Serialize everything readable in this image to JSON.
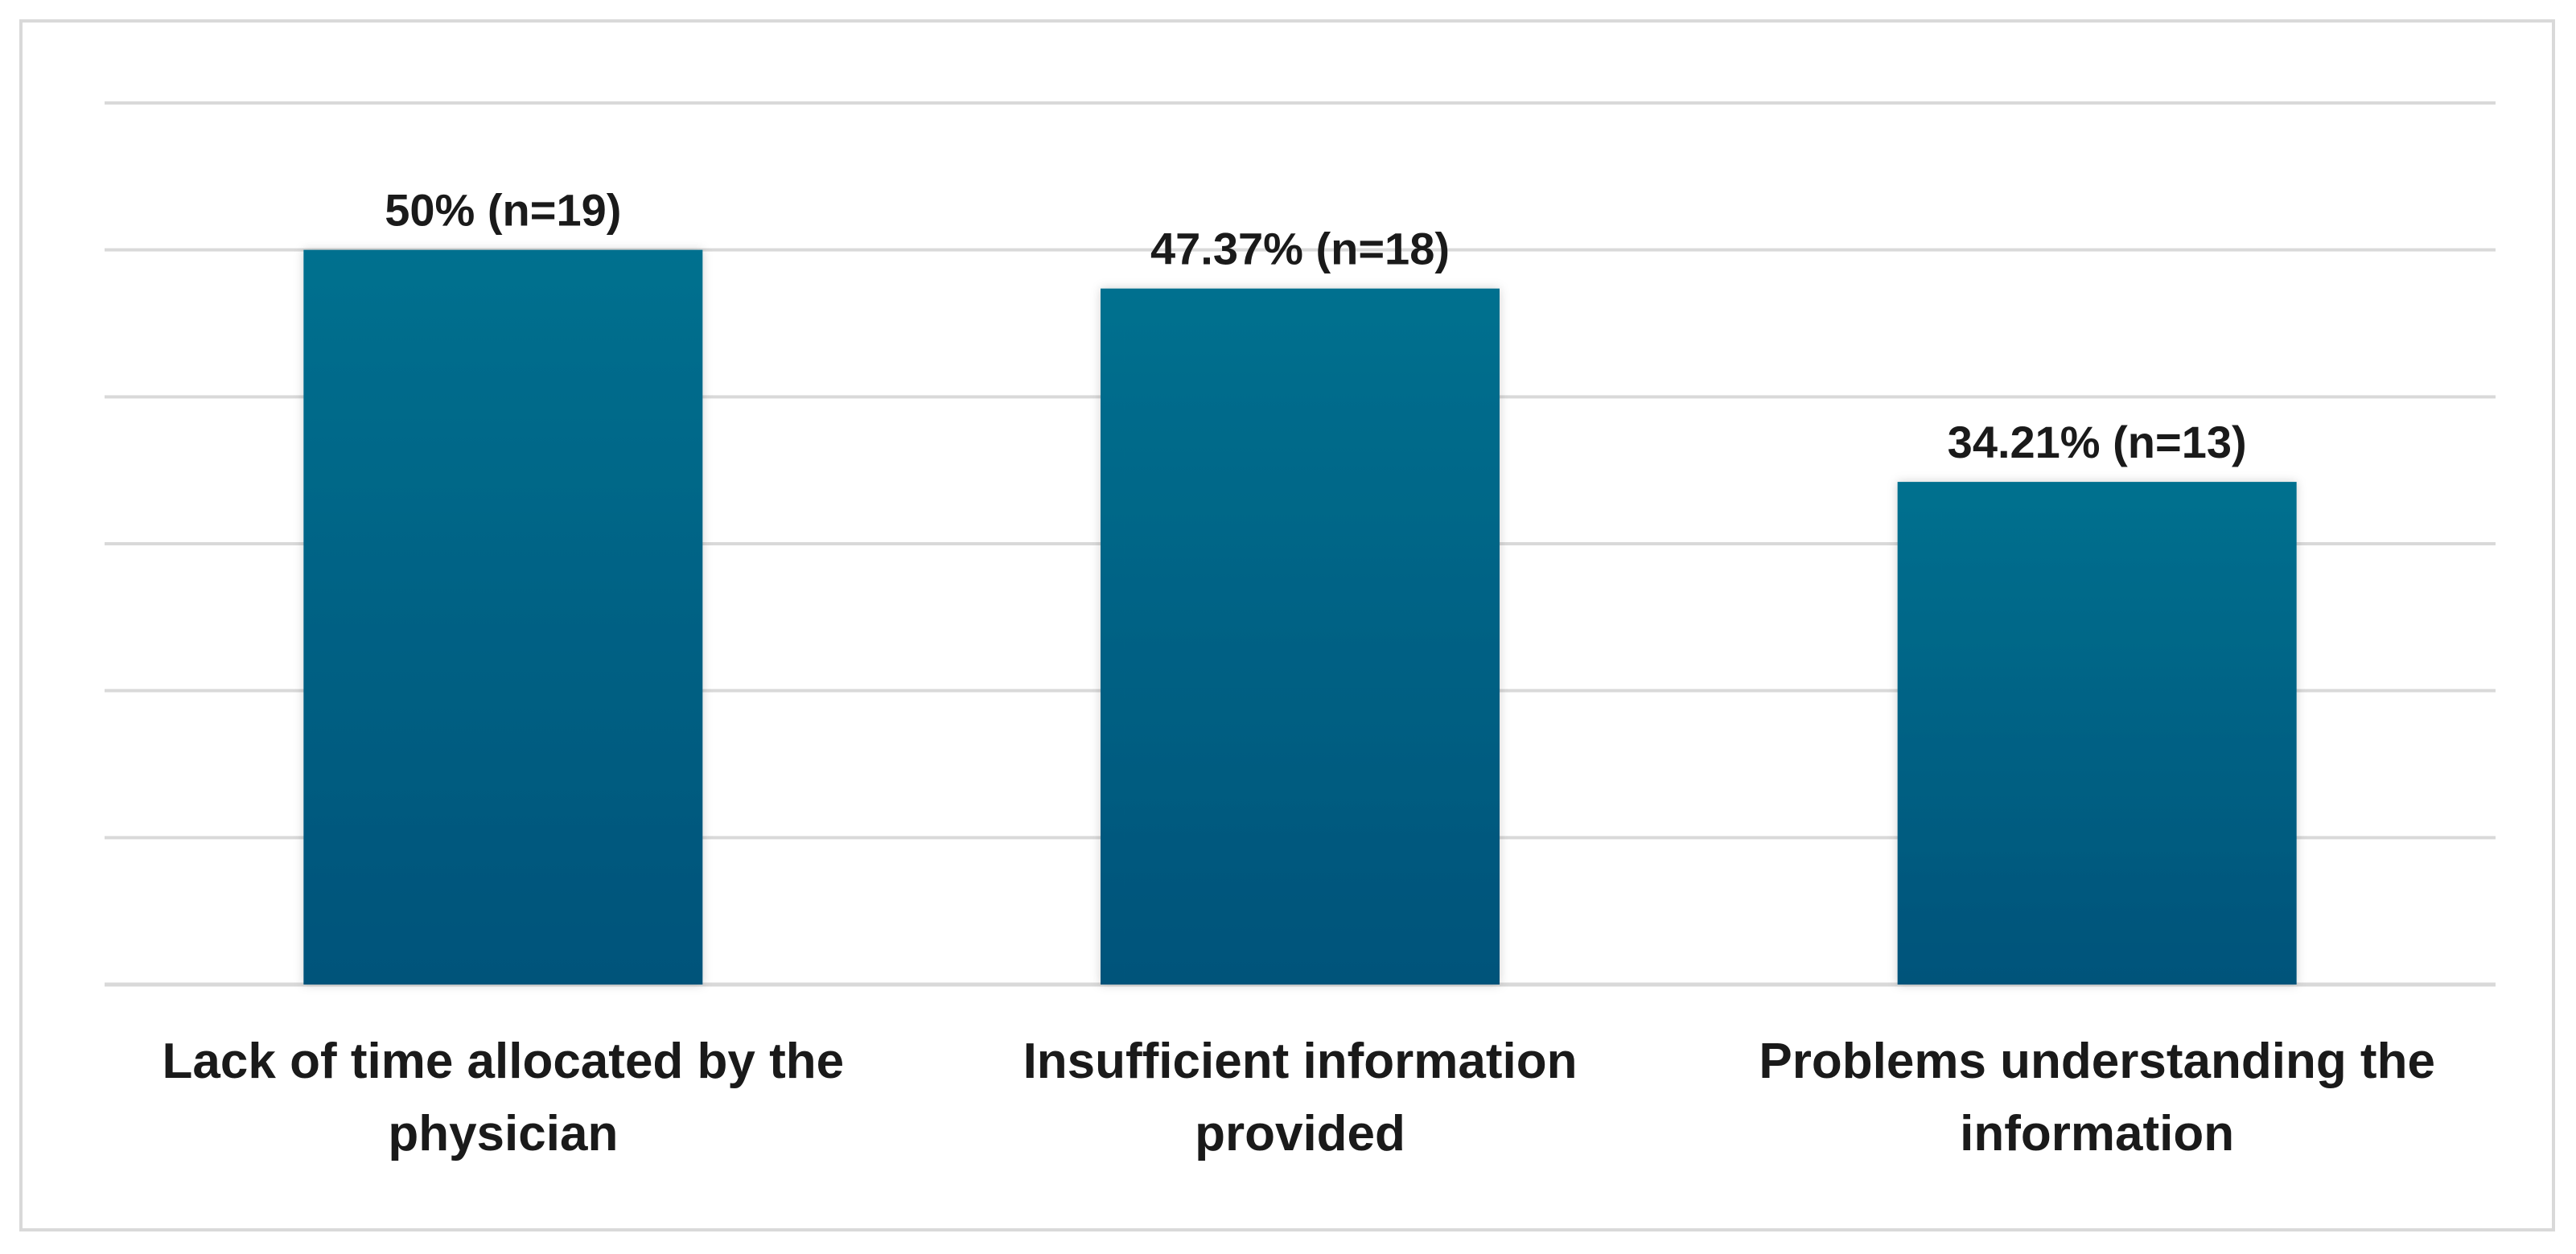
{
  "chart_data": {
    "type": "bar",
    "categories": [
      [
        "Lack of time allocated by the",
        "physician"
      ],
      [
        "Insufficient information",
        "provided"
      ],
      [
        "Problems understanding the",
        "information"
      ]
    ],
    "values": [
      50,
      47.37,
      34.21
    ],
    "counts": [
      19,
      18,
      13
    ],
    "data_labels": [
      "50% (n=19)",
      "47.37% (n=18)",
      "34.21% (n=13)"
    ],
    "title": "",
    "xlabel": "",
    "ylabel": "",
    "ylim": [
      0,
      60
    ],
    "grid": true,
    "legend": "none",
    "bar_color_top": "#00708f",
    "bar_color_bottom": "#00537a"
  }
}
